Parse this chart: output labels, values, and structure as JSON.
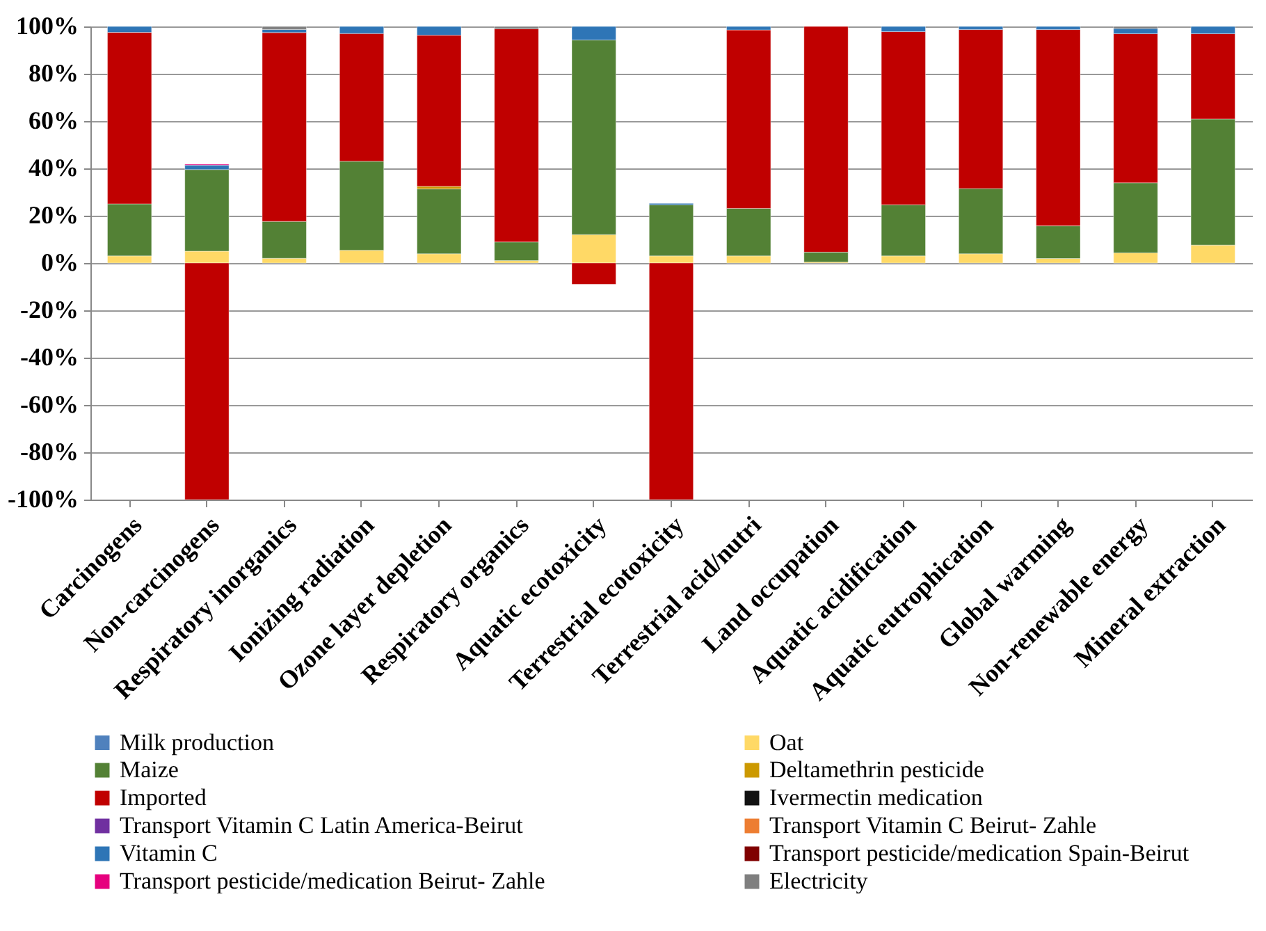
{
  "chart_data": {
    "type": "bar",
    "stacked": true,
    "grid": "y",
    "legend": "bottom",
    "categories": [
      "Carcinogens",
      "Non-carcinogens",
      "Respiratory inorganics",
      "Ionizing radiation",
      "Ozone layer depletion",
      "Respiratory organics",
      "Aquatic ecotoxicity",
      "Terrestrial ecotoxicity",
      "Terrestrial acid/nutri",
      "Land occupation",
      "Aquatic acidification",
      "Aquatic eutrophication",
      "Global warming",
      "Non-renewable energy",
      "Mineral extraction"
    ],
    "ylim": [
      -100,
      100
    ],
    "yticks": [
      {
        "value": -100,
        "label": "-100%"
      },
      {
        "value": -80,
        "label": "-80%"
      },
      {
        "value": -60,
        "label": "-60%"
      },
      {
        "value": -40,
        "label": "-40%"
      },
      {
        "value": -20,
        "label": "-20%"
      },
      {
        "value": 0,
        "label": "0%"
      },
      {
        "value": 20,
        "label": "20%"
      },
      {
        "value": 40,
        "label": "40%"
      },
      {
        "value": 60,
        "label": "60%"
      },
      {
        "value": 80,
        "label": "80%"
      },
      {
        "value": 100,
        "label": "100%"
      }
    ],
    "series": [
      {
        "name": "Milk production",
        "color": "#4f81bd",
        "values": [
          null,
          null,
          null,
          null,
          null,
          null,
          null,
          null,
          null,
          null,
          null,
          null,
          null,
          null,
          null
        ]
      },
      {
        "name": "Oat",
        "color": "#ffd966",
        "values": [
          3,
          5,
          2,
          5.4,
          3.9,
          1,
          12,
          3,
          3,
          0.4,
          3,
          3.9,
          1.9,
          4.3,
          7.6
        ]
      },
      {
        "name": "Maize",
        "color": "#538135",
        "values": [
          22,
          34.5,
          15.6,
          37.6,
          27.4,
          7.9,
          82.3,
          21.6,
          20.1,
          4.2,
          21.6,
          27.6,
          13.8,
          29.6,
          53.3
        ]
      },
      {
        "name": "Deltamethrin pesticide",
        "color": "#cc9900",
        "values": [
          null,
          null,
          null,
          null,
          1.1,
          null,
          null,
          null,
          null,
          null,
          null,
          null,
          null,
          null,
          null
        ]
      },
      {
        "name": "Imported",
        "color": "#c00000",
        "values": [
          72.5,
          -100,
          79.8,
          54,
          63.9,
          90.1,
          -9,
          -100,
          75.4,
          95.4,
          73.2,
          67.2,
          83,
          63,
          36
        ]
      },
      {
        "name": "Ivermectin medication",
        "color": "#111111",
        "values": [
          null,
          null,
          null,
          null,
          null,
          null,
          null,
          null,
          null,
          null,
          null,
          null,
          null,
          null,
          null
        ]
      },
      {
        "name": "Transport Vitamin C Latin America-Beirut",
        "color": "#7030a0",
        "values": [
          null,
          null,
          null,
          null,
          null,
          null,
          null,
          null,
          null,
          null,
          null,
          null,
          null,
          null,
          null
        ]
      },
      {
        "name": "Transport Vitamin C Beirut- Zahle",
        "color": "#ed7d31",
        "values": [
          null,
          null,
          null,
          null,
          null,
          null,
          null,
          null,
          null,
          null,
          null,
          null,
          null,
          null,
          null
        ]
      },
      {
        "name": "Vitamin C",
        "color": "#2e75b6",
        "values": [
          2.5,
          1.9,
          1.3,
          3,
          3.7,
          null,
          5.7,
          0.6,
          1.5,
          null,
          2.2,
          1.3,
          1.3,
          2.2,
          3.1
        ]
      },
      {
        "name": "Transport pesticide/medication Spain-Beirut",
        "color": "#800000",
        "values": [
          null,
          null,
          null,
          null,
          null,
          null,
          null,
          null,
          null,
          null,
          null,
          null,
          null,
          null,
          null
        ]
      },
      {
        "name": "Transport pesticide/medication Beirut- Zahle",
        "color": "#e6007e",
        "values": [
          null,
          0.4,
          null,
          null,
          null,
          null,
          null,
          null,
          null,
          null,
          null,
          null,
          null,
          null,
          null
        ]
      },
      {
        "name": "Electricity",
        "color": "#7f7f7f",
        "values": [
          null,
          null,
          1.3,
          null,
          null,
          1,
          null,
          null,
          null,
          null,
          null,
          null,
          null,
          0.9,
          null
        ]
      }
    ]
  }
}
